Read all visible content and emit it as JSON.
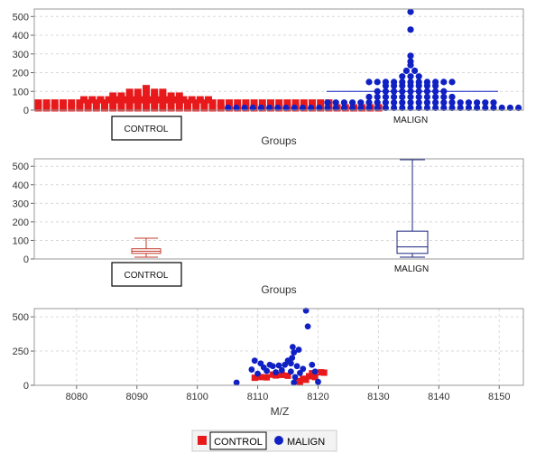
{
  "colors": {
    "control": "#e8191b",
    "malign": "#1021c4",
    "box_control": "#c0392b",
    "box_malign": "#1a237e",
    "plot_bg": "#ffffff",
    "frame": "#999999",
    "grid": "#d9d9d9"
  },
  "chart_data": [
    {
      "type": "scatter",
      "subtype": "dot-strip",
      "xlabel": "Groups",
      "categories": [
        "CONTROL",
        "MALIGN"
      ],
      "yticks": [
        0,
        100,
        200,
        300,
        400,
        500
      ],
      "ylim": [
        0,
        540
      ],
      "grid": true,
      "series": [
        {
          "name": "CONTROL",
          "marker": "square",
          "values": [
            12,
            12,
            12,
            12,
            12,
            12,
            12,
            12,
            12,
            12,
            12,
            12,
            12,
            12,
            12,
            12,
            12,
            12,
            12,
            12,
            12,
            12,
            12,
            12,
            12,
            12,
            12,
            12,
            12,
            12,
            12,
            12,
            12,
            12,
            12,
            12,
            12,
            12,
            12,
            12,
            12,
            12,
            12,
            12,
            12,
            12,
            12,
            12,
            12,
            12,
            12,
            12,
            12,
            12,
            12,
            12,
            12,
            38,
            38,
            38,
            38,
            38,
            38,
            38,
            38,
            38,
            38,
            38,
            38,
            38,
            38,
            38,
            38,
            38,
            38,
            38,
            38,
            38,
            38,
            38,
            38,
            38,
            38,
            38,
            38,
            38,
            38,
            38,
            38,
            38,
            38,
            38,
            38,
            38,
            38,
            38,
            38,
            38,
            38,
            38,
            38,
            38,
            55,
            55,
            55,
            55,
            55,
            55,
            55,
            55,
            55,
            55,
            55,
            55,
            55,
            55,
            55,
            55,
            75,
            75,
            75,
            75,
            75,
            75,
            75,
            75,
            75,
            95,
            95,
            95,
            95,
            95,
            115
          ]
        },
        {
          "name": "MALIGN",
          "marker": "circle",
          "values": [
            12,
            12,
            12,
            12,
            12,
            12,
            12,
            12,
            12,
            12,
            12,
            12,
            12,
            12,
            12,
            12,
            12,
            12,
            12,
            12,
            12,
            12,
            12,
            12,
            12,
            12,
            12,
            12,
            12,
            12,
            12,
            12,
            12,
            12,
            12,
            12,
            12,
            12,
            12,
            12,
            12,
            12,
            12,
            12,
            12,
            40,
            40,
            40,
            40,
            40,
            40,
            40,
            40,
            40,
            40,
            40,
            40,
            40,
            40,
            40,
            40,
            40,
            40,
            40,
            40,
            40,
            70,
            70,
            70,
            70,
            70,
            70,
            70,
            70,
            70,
            70,
            70,
            100,
            100,
            100,
            100,
            100,
            100,
            100,
            100,
            100,
            130,
            130,
            130,
            130,
            130,
            130,
            130,
            150,
            150,
            150,
            150,
            150,
            150,
            150,
            150,
            150,
            150,
            150,
            180,
            180,
            180,
            210,
            210,
            240,
            260,
            290,
            430,
            525
          ]
        }
      ],
      "reference_lines": [
        {
          "series": "MALIGN",
          "y": 100
        }
      ]
    },
    {
      "type": "box",
      "xlabel": "Groups",
      "categories": [
        "CONTROL",
        "MALIGN"
      ],
      "yticks": [
        0,
        100,
        200,
        300,
        400,
        500
      ],
      "ylim": [
        0,
        540
      ],
      "grid": true,
      "boxes": [
        {
          "name": "CONTROL",
          "min": 10,
          "q1": 30,
          "median": 42,
          "q3": 55,
          "max": 112
        },
        {
          "name": "MALIGN",
          "min": 10,
          "q1": 30,
          "median": 65,
          "q3": 150,
          "max": 535
        }
      ]
    },
    {
      "type": "scatter",
      "xlabel": "M/Z",
      "xticks": [
        8080,
        8090,
        8100,
        8110,
        8120,
        8130,
        8140,
        8150
      ],
      "yticks": [
        0,
        250,
        500
      ],
      "xlim": [
        8073,
        8154
      ],
      "ylim": [
        0,
        560
      ],
      "grid": true,
      "series": [
        {
          "name": "CONTROL",
          "marker": "square",
          "points": [
            [
              8109.5,
              55
            ],
            [
              8110.5,
              60
            ],
            [
              8111.5,
              58
            ],
            [
              8112.5,
              78
            ],
            [
              8113,
              72
            ],
            [
              8114,
              76
            ],
            [
              8115,
              70
            ],
            [
              8116.5,
              30
            ],
            [
              8117,
              25
            ],
            [
              8117.5,
              48
            ],
            [
              8118,
              40
            ],
            [
              8118.5,
              66
            ],
            [
              8119,
              88
            ],
            [
              8119.5,
              60
            ],
            [
              8120.5,
              95
            ],
            [
              8121,
              92
            ]
          ]
        },
        {
          "name": "MALIGN",
          "marker": "circle",
          "points": [
            [
              8106.5,
              20
            ],
            [
              8109,
              115
            ],
            [
              8109.5,
              180
            ],
            [
              8110,
              85
            ],
            [
              8110.5,
              160
            ],
            [
              8111,
              130
            ],
            [
              8111.5,
              105
            ],
            [
              8112,
              150
            ],
            [
              8112.5,
              140
            ],
            [
              8113,
              95
            ],
            [
              8113.5,
              145
            ],
            [
              8114,
              110
            ],
            [
              8114.5,
              150
            ],
            [
              8115,
              180
            ],
            [
              8115.5,
              100
            ],
            [
              8115.5,
              160
            ],
            [
              8115.7,
              200
            ],
            [
              8115.8,
              280
            ],
            [
              8116,
              240
            ],
            [
              8116,
              20
            ],
            [
              8116.2,
              60
            ],
            [
              8116.5,
              140
            ],
            [
              8116.8,
              260
            ],
            [
              8117,
              90
            ],
            [
              8117.5,
              120
            ],
            [
              8118,
              545
            ],
            [
              8118.3,
              430
            ],
            [
              8119,
              150
            ],
            [
              8119.5,
              100
            ],
            [
              8120,
              25
            ]
          ]
        }
      ]
    }
  ],
  "legend": {
    "items": [
      {
        "label": "CONTROL",
        "marker": "square"
      },
      {
        "label": "MALIGN",
        "marker": "circle"
      }
    ]
  }
}
